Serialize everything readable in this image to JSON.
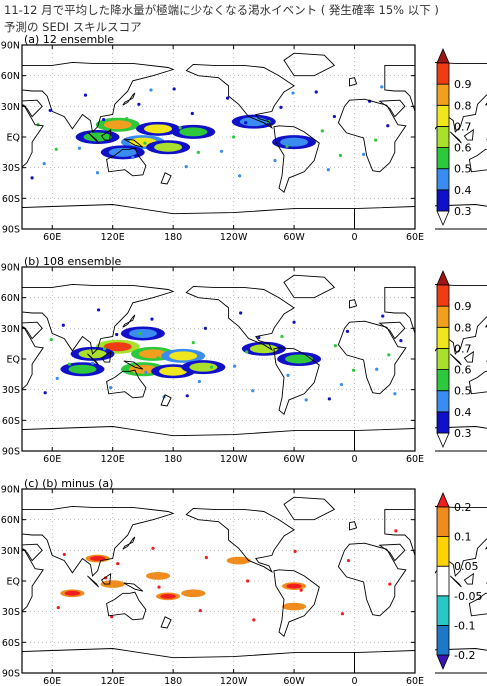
{
  "header": {
    "line1": "11-12 月で平均した降水量が極端に少なくなる渇水イベント ( 発生確率 15% 以下 )",
    "line2": "予測の SEDI スキルスコア"
  },
  "colors": {
    "sedi": [
      "#ffffff",
      "#1010c8",
      "#3a8cf0",
      "#2ec83c",
      "#a8e02c",
      "#f0e61e",
      "#f0a01e",
      "#f03c14",
      "#a01414"
    ],
    "diff": [
      "#3c14b4",
      "#1e78c8",
      "#28c8c8",
      "#ffffff",
      "#ffd200",
      "#f08c1e",
      "#f01e1e"
    ],
    "land_line": "#000000",
    "grid_line": "#999999"
  },
  "chart_data": [
    {
      "type": "heatmap",
      "title": "(a) 12 ensemble",
      "x_ticks": [
        "60E",
        "120E",
        "180",
        "120W",
        "60W",
        "0",
        "60E"
      ],
      "y_ticks": [
        "90N",
        "60N",
        "30N",
        "EQ",
        "30S",
        "60S",
        "90S"
      ],
      "colorbar": {
        "levels": [
          0.3,
          0.4,
          0.5,
          0.6,
          0.7,
          0.8,
          0.9
        ],
        "labels": [
          "0.3",
          "0.4",
          "0.5",
          "0.6",
          "0.7",
          "0.8",
          "0.9"
        ]
      },
      "hotspots": [
        {
          "lon": 125,
          "lat": 12,
          "value": 0.85
        },
        {
          "lon": 165,
          "lat": 8,
          "value": 0.7
        },
        {
          "lon": 150,
          "lat": -5,
          "value": 0.75
        },
        {
          "lon": 175,
          "lat": -10,
          "value": 0.6
        },
        {
          "lon": 200,
          "lat": 5,
          "value": 0.55
        },
        {
          "lon": 105,
          "lat": 0,
          "value": 0.5
        },
        {
          "lon": 130,
          "lat": -15,
          "value": 0.45
        },
        {
          "lon": 260,
          "lat": 15,
          "value": 0.45
        },
        {
          "lon": 300,
          "lat": -5,
          "value": 0.4
        }
      ]
    },
    {
      "type": "heatmap",
      "title": "(b) 108 ensemble",
      "x_ticks": [
        "60E",
        "120E",
        "180",
        "120W",
        "60W",
        "0",
        "60E"
      ],
      "y_ticks": [
        "90N",
        "60N",
        "30N",
        "EQ",
        "30S",
        "60S",
        "90S"
      ],
      "colorbar": {
        "levels": [
          0.3,
          0.4,
          0.5,
          0.6,
          0.7,
          0.8,
          0.9
        ],
        "labels": [
          "0.3",
          "0.4",
          "0.5",
          "0.6",
          "0.7",
          "0.8",
          "0.9"
        ]
      },
      "hotspots": [
        {
          "lon": 125,
          "lat": 12,
          "value": 0.9
        },
        {
          "lon": 160,
          "lat": 5,
          "value": 0.85
        },
        {
          "lon": 190,
          "lat": 3,
          "value": 0.75
        },
        {
          "lon": 150,
          "lat": -10,
          "value": 0.85
        },
        {
          "lon": 180,
          "lat": -12,
          "value": 0.7
        },
        {
          "lon": 210,
          "lat": -8,
          "value": 0.65
        },
        {
          "lon": 100,
          "lat": 5,
          "value": 0.6
        },
        {
          "lon": 90,
          "lat": -10,
          "value": 0.55
        },
        {
          "lon": 270,
          "lat": 10,
          "value": 0.6
        },
        {
          "lon": 305,
          "lat": 0,
          "value": 0.55
        },
        {
          "lon": 150,
          "lat": 25,
          "value": 0.45
        }
      ]
    },
    {
      "type": "heatmap",
      "title": "(c) (b) minus (a)",
      "x_ticks": [
        "60E",
        "120E",
        "180",
        "120W",
        "60W",
        "0",
        "60E"
      ],
      "y_ticks": [
        "90N",
        "60N",
        "30N",
        "EQ",
        "30S",
        "60S",
        "90S"
      ],
      "colorbar": {
        "levels": [
          -0.2,
          -0.1,
          -0.05,
          0.05,
          0.1,
          0.2
        ],
        "labels": [
          "-0.2",
          "-0.1",
          "-0.05",
          "0.05",
          "0.1",
          "0.2"
        ]
      },
      "hotspots": [
        {
          "lon": 80,
          "lat": -12,
          "value": 0.2
        },
        {
          "lon": 105,
          "lat": 22,
          "value": 0.2
        },
        {
          "lon": 120,
          "lat": -3,
          "value": 0.15
        },
        {
          "lon": 175,
          "lat": -15,
          "value": 0.2
        },
        {
          "lon": 200,
          "lat": -12,
          "value": 0.15
        },
        {
          "lon": 165,
          "lat": 5,
          "value": 0.1
        },
        {
          "lon": 245,
          "lat": 20,
          "value": 0.15
        },
        {
          "lon": 300,
          "lat": -5,
          "value": 0.2
        },
        {
          "lon": 300,
          "lat": -25,
          "value": 0.1
        }
      ]
    }
  ]
}
